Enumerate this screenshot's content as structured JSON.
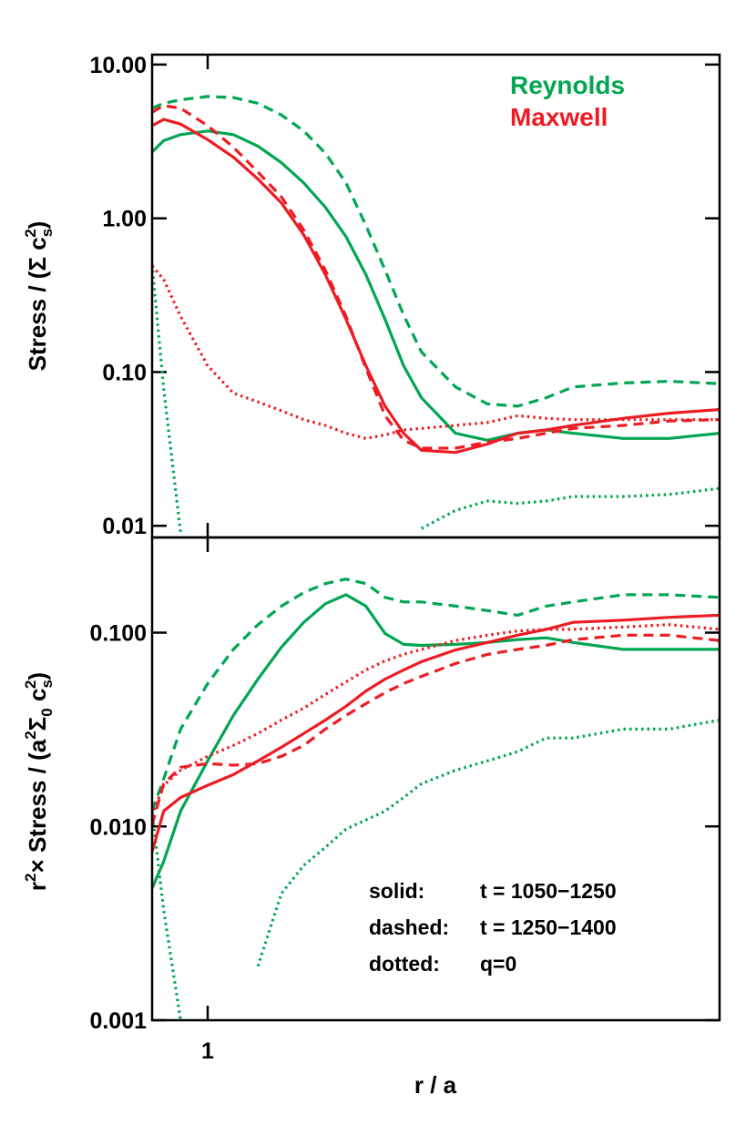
{
  "chart_data": [
    {
      "type": "line",
      "ylabel": [
        "Stress / (Σ c",
        "s",
        "2",
        ")"
      ],
      "x": [
        0.9,
        0.92,
        0.95,
        1.0,
        1.05,
        1.1,
        1.15,
        1.2,
        1.25,
        1.3,
        1.35,
        1.4,
        1.45,
        1.5,
        1.6,
        1.7,
        1.8,
        1.9,
        2.0,
        2.2,
        2.4,
        2.64
      ],
      "xlim": [
        0.9,
        2.64
      ],
      "xticks": [
        1
      ],
      "xscale": "log",
      "ylim": [
        0.0084,
        11.6
      ],
      "yscale": "log",
      "yticks": [
        {
          "value": 10,
          "label": "10.00"
        },
        {
          "value": 1,
          "label": "1.00"
        },
        {
          "value": 0.1,
          "label": "0.10"
        },
        {
          "value": 0.01,
          "label": "0.01"
        }
      ],
      "legend": "upper right",
      "series": [
        {
          "name": "Reynolds",
          "color": "#00a651",
          "style": "solid",
          "values": [
            2.7,
            3.2,
            3.5,
            3.7,
            3.5,
            2.95,
            2.3,
            1.7,
            1.18,
            0.76,
            0.43,
            0.22,
            0.11,
            0.068,
            0.04,
            0.036,
            0.04,
            0.042,
            0.04,
            0.037,
            0.037,
            0.04
          ]
        },
        {
          "name": "Reynolds",
          "color": "#00a651",
          "style": "dashed",
          "values": [
            5.2,
            5.6,
            5.9,
            6.2,
            6.1,
            5.6,
            4.7,
            3.7,
            2.65,
            1.7,
            0.9,
            0.46,
            0.235,
            0.135,
            0.08,
            0.062,
            0.06,
            0.068,
            0.08,
            0.085,
            0.087,
            0.084
          ]
        },
        {
          "name": "Reynolds",
          "color": "#00a651",
          "style": "dotted",
          "values": [
            0.5,
            0.078,
            0.009,
            null,
            null,
            null,
            null,
            null,
            null,
            null,
            null,
            null,
            null,
            0.0096,
            0.0126,
            0.0145,
            0.014,
            0.0145,
            0.0155,
            0.0155,
            0.016,
            0.0175
          ]
        },
        {
          "name": "Maxwell",
          "color": "#ed1c24",
          "style": "solid",
          "values": [
            4.0,
            4.4,
            4.1,
            3.25,
            2.5,
            1.8,
            1.26,
            0.78,
            0.43,
            0.22,
            0.11,
            0.06,
            0.04,
            0.031,
            0.03,
            0.034,
            0.04,
            0.042,
            0.045,
            0.05,
            0.054,
            0.057
          ]
        },
        {
          "name": "Maxwell",
          "color": "#ed1c24",
          "style": "dashed",
          "values": [
            4.9,
            5.4,
            5.2,
            4.0,
            2.9,
            2.0,
            1.38,
            0.84,
            0.46,
            0.23,
            0.106,
            0.052,
            0.036,
            0.032,
            0.032,
            0.035,
            0.037,
            0.04,
            0.043,
            0.045,
            0.048,
            0.049
          ]
        },
        {
          "name": "Maxwell",
          "color": "#ed1c24",
          "style": "dotted",
          "values": [
            0.49,
            0.4,
            0.23,
            0.11,
            0.073,
            0.064,
            0.056,
            0.049,
            0.045,
            0.04,
            0.037,
            0.039,
            0.042,
            0.043,
            0.045,
            0.047,
            0.052,
            0.05,
            0.049,
            0.049,
            0.049,
            0.049
          ]
        }
      ]
    },
    {
      "type": "line",
      "xlabel": "r / a",
      "ylabel": [
        "r",
        "2",
        "× Stress / (a",
        "2",
        "Σ",
        "0",
        " c",
        "s",
        "2",
        ")"
      ],
      "x": [
        0.9,
        0.92,
        0.95,
        1.0,
        1.05,
        1.1,
        1.15,
        1.2,
        1.25,
        1.3,
        1.35,
        1.4,
        1.45,
        1.5,
        1.6,
        1.7,
        1.8,
        1.9,
        2.0,
        2.2,
        2.4,
        2.64
      ],
      "xlim": [
        0.9,
        2.64
      ],
      "xticks": [
        1
      ],
      "xscale": "log",
      "ylim": [
        0.001,
        0.31
      ],
      "yscale": "log",
      "yticks": [
        {
          "value": 0.1,
          "label": "0.100"
        },
        {
          "value": 0.01,
          "label": "0.010"
        },
        {
          "value": 0.001,
          "label": "0.001"
        }
      ],
      "annotations": [
        [
          "solid:",
          "t = 1050−1250"
        ],
        [
          "dashed:",
          "t = 1250−1400"
        ],
        [
          "dotted:",
          "q=0"
        ]
      ],
      "series": [
        {
          "name": "Reynolds",
          "color": "#00a651",
          "style": "solid",
          "values": [
            0.0048,
            0.0066,
            0.012,
            0.0218,
            0.0374,
            0.0576,
            0.084,
            0.113,
            0.141,
            0.157,
            0.137,
            0.099,
            0.087,
            0.086,
            0.087,
            0.089,
            0.092,
            0.094,
            0.089,
            0.082,
            0.082,
            0.082
          ]
        },
        {
          "name": "Reynolds",
          "color": "#00a651",
          "style": "dashed",
          "values": [
            0.012,
            0.0176,
            0.0318,
            0.0546,
            0.082,
            0.11,
            0.137,
            0.161,
            0.179,
            0.189,
            0.179,
            0.152,
            0.144,
            0.144,
            0.137,
            0.13,
            0.123,
            0.137,
            0.144,
            0.157,
            0.157,
            0.152
          ]
        },
        {
          "name": "Reynolds",
          "color": "#00a651",
          "style": "dotted",
          "values": [
            0.012,
            0.0037,
            0.001,
            null,
            null,
            0.0019,
            0.0045,
            0.0063,
            0.0078,
            0.0097,
            0.0108,
            0.012,
            0.0141,
            0.0166,
            0.0195,
            0.0218,
            0.0243,
            0.0286,
            0.0286,
            0.0318,
            0.0318,
            0.0354
          ]
        },
        {
          "name": "Maxwell",
          "color": "#ed1c24",
          "style": "solid",
          "values": [
            0.0074,
            0.012,
            0.0141,
            0.0163,
            0.0185,
            0.0218,
            0.0256,
            0.0302,
            0.0354,
            0.0417,
            0.05,
            0.0576,
            0.0642,
            0.0708,
            0.0814,
            0.089,
            0.097,
            0.104,
            0.113,
            0.116,
            0.12,
            0.123
          ]
        },
        {
          "name": "Maxwell",
          "color": "#ed1c24",
          "style": "dashed",
          "values": [
            0.0102,
            0.0166,
            0.0202,
            0.0211,
            0.0207,
            0.0211,
            0.023,
            0.0262,
            0.0318,
            0.0374,
            0.043,
            0.049,
            0.0546,
            0.0595,
            0.0693,
            0.0772,
            0.082,
            0.086,
            0.092,
            0.097,
            0.097,
            0.091
          ]
        },
        {
          "name": "Maxwell",
          "color": "#ed1c24",
          "style": "dotted",
          "values": [
            0.0114,
            0.0163,
            0.0195,
            0.023,
            0.0262,
            0.0302,
            0.0354,
            0.0408,
            0.048,
            0.0557,
            0.0642,
            0.0715,
            0.0772,
            0.082,
            0.091,
            0.097,
            0.102,
            0.104,
            0.104,
            0.107,
            0.11,
            0.104
          ]
        }
      ]
    }
  ]
}
